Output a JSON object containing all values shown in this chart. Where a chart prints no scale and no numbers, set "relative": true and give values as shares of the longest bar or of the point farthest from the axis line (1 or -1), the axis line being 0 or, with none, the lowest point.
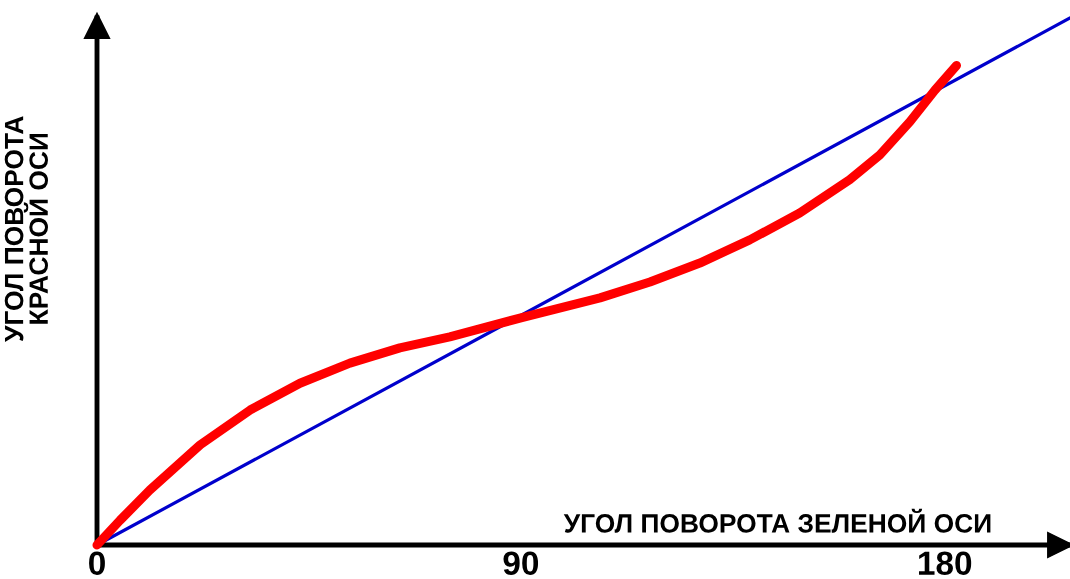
{
  "chart_data": {
    "type": "line",
    "relative": true,
    "xlabel": "УГОЛ ПОВОРОТА ЗЕЛЕНОЙ ОСИ",
    "ylabel": "УГОЛ ПОВОРОТА\nКРАСНОЙ ОСИ",
    "xlim": [
      0,
      206.6
    ],
    "xticks": [
      0,
      90,
      180
    ],
    "marker": "none",
    "line_style": "solid",
    "series": [
      {
        "color": "#ff0000",
        "x": [
          0,
          4.9,
          11.2,
          21.9,
          32.5,
          43.1,
          53.7,
          64.3,
          74.9,
          90,
          106.8,
          117.4,
          128.0,
          138.6,
          149.2,
          159.8,
          166.2,
          172.6,
          177.9,
          182.5
        ],
        "values": [
          0,
          0.047,
          0.104,
          0.19,
          0.256,
          0.307,
          0.345,
          0.374,
          0.395,
          0.431,
          0.469,
          0.499,
          0.535,
          0.579,
          0.63,
          0.693,
          0.74,
          0.803,
          0.863,
          0.91
        ]
      },
      {
        "color": "#0000cc",
        "x": [
          0,
          206.6
        ],
        "values": [
          0,
          1
        ]
      }
    ]
  }
}
